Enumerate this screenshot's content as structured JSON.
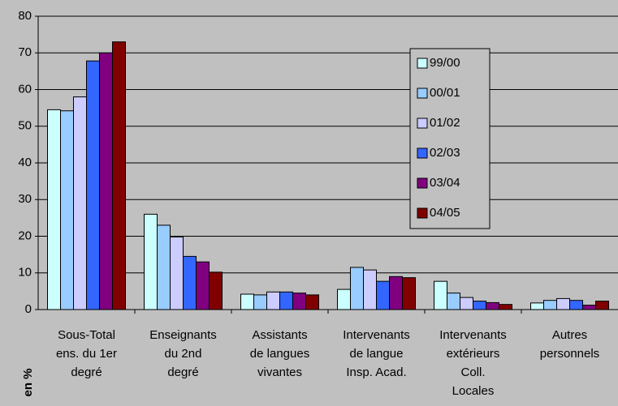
{
  "chart_data": {
    "type": "bar",
    "y_label": "en %",
    "categories": [
      "Sous-Total\nens. du 1er\ndegré",
      "Enseignants\ndu 2nd\ndegré",
      "Assistants\nde langues\nvivantes",
      "Intervenants\nde langue\nInsp. Acad.",
      "Intervenants\nextérieurs\nColl.\nLocales",
      "Autres\npersonnels"
    ],
    "series": [
      {
        "name": "99/00",
        "color": "#ccffff",
        "values": [
          54.5,
          26,
          4.2,
          5.5,
          7.7,
          1.8
        ]
      },
      {
        "name": "00/01",
        "color": "#99ccff",
        "values": [
          54.2,
          23,
          4,
          11.5,
          4.5,
          2.5
        ]
      },
      {
        "name": "01/02",
        "color": "#ccccff",
        "values": [
          58,
          19.8,
          4.8,
          10.8,
          3.3,
          3
        ]
      },
      {
        "name": "02/03",
        "color": "#3366ff",
        "values": [
          67.8,
          14.5,
          4.8,
          7.7,
          2.3,
          2.5
        ]
      },
      {
        "name": "03/04",
        "color": "#800080",
        "values": [
          70,
          13,
          4.5,
          9,
          1.9,
          1.2
        ]
      },
      {
        "name": "04/05",
        "color": "#800000",
        "values": [
          73,
          10.2,
          4,
          8.7,
          1.4,
          2.3
        ]
      }
    ],
    "ylim": [
      0,
      80
    ],
    "yticks": [
      0,
      10,
      20,
      30,
      40,
      50,
      60,
      70,
      80
    ],
    "grid": true,
    "legend": "right"
  }
}
